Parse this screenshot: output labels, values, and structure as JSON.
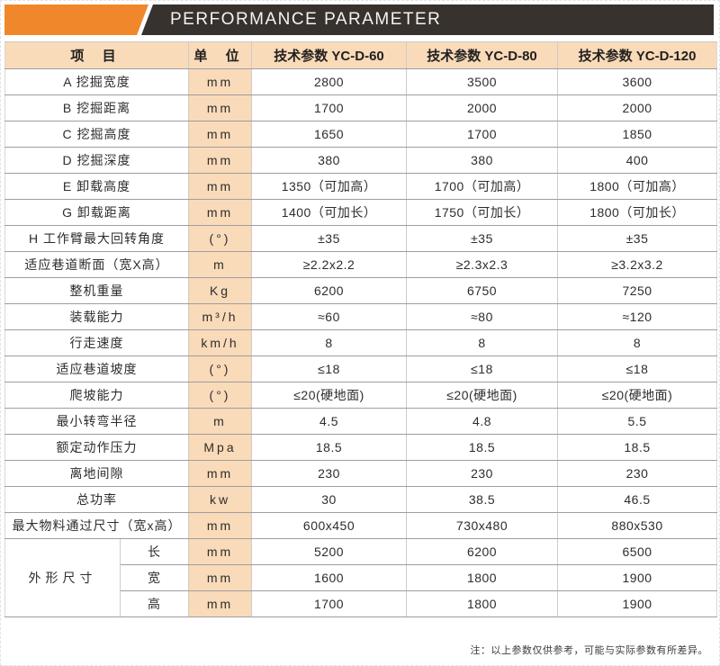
{
  "banner": {
    "title": "PERFORMANCE PARAMETER",
    "accent_color": "#F0872B",
    "bar_color": "#37322E"
  },
  "table": {
    "headers": {
      "item": "项 目",
      "unit": "单 位",
      "models": [
        "技术参数 YC-D-60",
        "技术参数 YC-D-80",
        "技术参数 YC-D-120"
      ]
    },
    "rows": [
      {
        "item": "A 挖掘宽度",
        "unit": "mm",
        "values": [
          "2800",
          "3500",
          "3600"
        ]
      },
      {
        "item": "B 挖掘距离",
        "unit": "mm",
        "values": [
          "1700",
          "2000",
          "2000"
        ]
      },
      {
        "item": "C 挖掘高度",
        "unit": "mm",
        "values": [
          "1650",
          "1700",
          "1850"
        ]
      },
      {
        "item": "D 挖掘深度",
        "unit": "mm",
        "values": [
          "380",
          "380",
          "400"
        ]
      },
      {
        "item": "E 卸载高度",
        "unit": "mm",
        "values": [
          "1350（可加高）",
          "1700（可加高）",
          "1800（可加高）"
        ]
      },
      {
        "item": "G 卸载距离",
        "unit": "mm",
        "values": [
          "1400（可加长）",
          "1750（可加长）",
          "1800（可加长）"
        ]
      },
      {
        "item": "H 工作臂最大回转角度",
        "unit": "(°)",
        "values": [
          "±35",
          "±35",
          "±35"
        ]
      },
      {
        "item": "适应巷道断面（宽X高）",
        "unit": "m",
        "values": [
          "≥2.2x2.2",
          "≥2.3x2.3",
          "≥3.2x3.2"
        ]
      },
      {
        "item": "整机重量",
        "unit": "Kg",
        "values": [
          "6200",
          "6750",
          "7250"
        ]
      },
      {
        "item": "装载能力",
        "unit": "m³/h",
        "values": [
          "≈60",
          "≈80",
          "≈120"
        ]
      },
      {
        "item": "行走速度",
        "unit": "km/h",
        "values": [
          "8",
          "8",
          "8"
        ]
      },
      {
        "item": "适应巷道坡度",
        "unit": "(°)",
        "values": [
          "≤18",
          "≤18",
          "≤18"
        ]
      },
      {
        "item": "爬坡能力",
        "unit": "(°)",
        "values": [
          "≤20(硬地面)",
          "≤20(硬地面)",
          "≤20(硬地面)"
        ]
      },
      {
        "item": "最小转弯半径",
        "unit": "m",
        "values": [
          "4.5",
          "4.8",
          "5.5"
        ]
      },
      {
        "item": "额定动作压力",
        "unit": "Mpa",
        "values": [
          "18.5",
          "18.5",
          "18.5"
        ]
      },
      {
        "item": "离地间隙",
        "unit": "mm",
        "values": [
          "230",
          "230",
          "230"
        ]
      },
      {
        "item": "总功率",
        "unit": "kw",
        "values": [
          "30",
          "38.5",
          "46.5"
        ]
      },
      {
        "item": "最大物料通过尺寸（宽x高）",
        "unit": "mm",
        "values": [
          "600x450",
          "730x480",
          "880x530"
        ]
      }
    ],
    "dimension_group": {
      "label": "外形尺寸",
      "rows": [
        {
          "item": "长",
          "unit": "mm",
          "values": [
            "5200",
            "6200",
            "6500"
          ]
        },
        {
          "item": "宽",
          "unit": "mm",
          "values": [
            "1600",
            "1800",
            "1900"
          ]
        },
        {
          "item": "高",
          "unit": "mm",
          "values": [
            "1700",
            "1800",
            "1900"
          ]
        }
      ]
    }
  },
  "footnote": "注：以上参数仅供参考，可能与实际参数有所差异。"
}
